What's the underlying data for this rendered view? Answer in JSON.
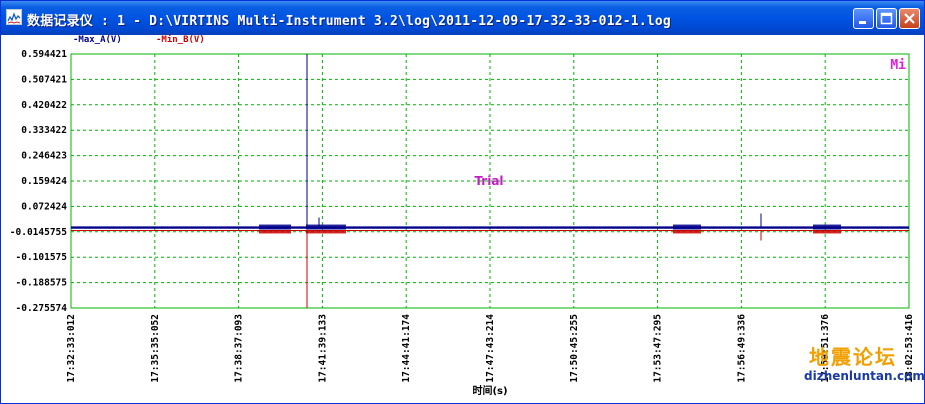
{
  "window": {
    "title": "数据记录仪 : 1 - D:\\VIRTINS Multi-Instrument 3.2\\log\\2011-12-09-17-32-33-012-1.log",
    "buttons": [
      "minimize",
      "maximize",
      "close"
    ]
  },
  "legend": {
    "a_label": "-Max_A(V)",
    "b_label": "-Min_B(V)",
    "a_color": "#00008b",
    "b_color": "#cc0000"
  },
  "chart_data": {
    "type": "line",
    "y_ticks": [
      "0.594421",
      "0.507421",
      "0.420422",
      "0.333422",
      "0.246423",
      "0.159424",
      "0.072424",
      "-0.0145755",
      "-0.101575",
      "-0.188575",
      "-0.275574"
    ],
    "ylim": [
      -0.275574,
      0.594421
    ],
    "x_ticks": [
      "17:32:33:012",
      "17:35:35:052",
      "17:38:37:093",
      "17:41:39:133",
      "17:44:41:174",
      "17:47:43:214",
      "17:50:45:255",
      "17:53:47:295",
      "17:56:49:336",
      "17:59:51:376",
      "18:02:53:416"
    ],
    "xlabel": "时间(s)",
    "ylabel": "",
    "grid": true,
    "annotation": "Trial",
    "corner_label": "Mi",
    "grid_color": "#00b400",
    "series": [
      {
        "name": "Max_A(V)",
        "baseline": 0.0,
        "spike": 0.594421,
        "color": "#00008b"
      },
      {
        "name": "Min_B(V)",
        "baseline": -0.01,
        "spike": -0.275574,
        "color": "#cc0000"
      }
    ]
  },
  "watermark": {
    "cn": "地震论坛",
    "url": "dizhenluntan.com"
  }
}
